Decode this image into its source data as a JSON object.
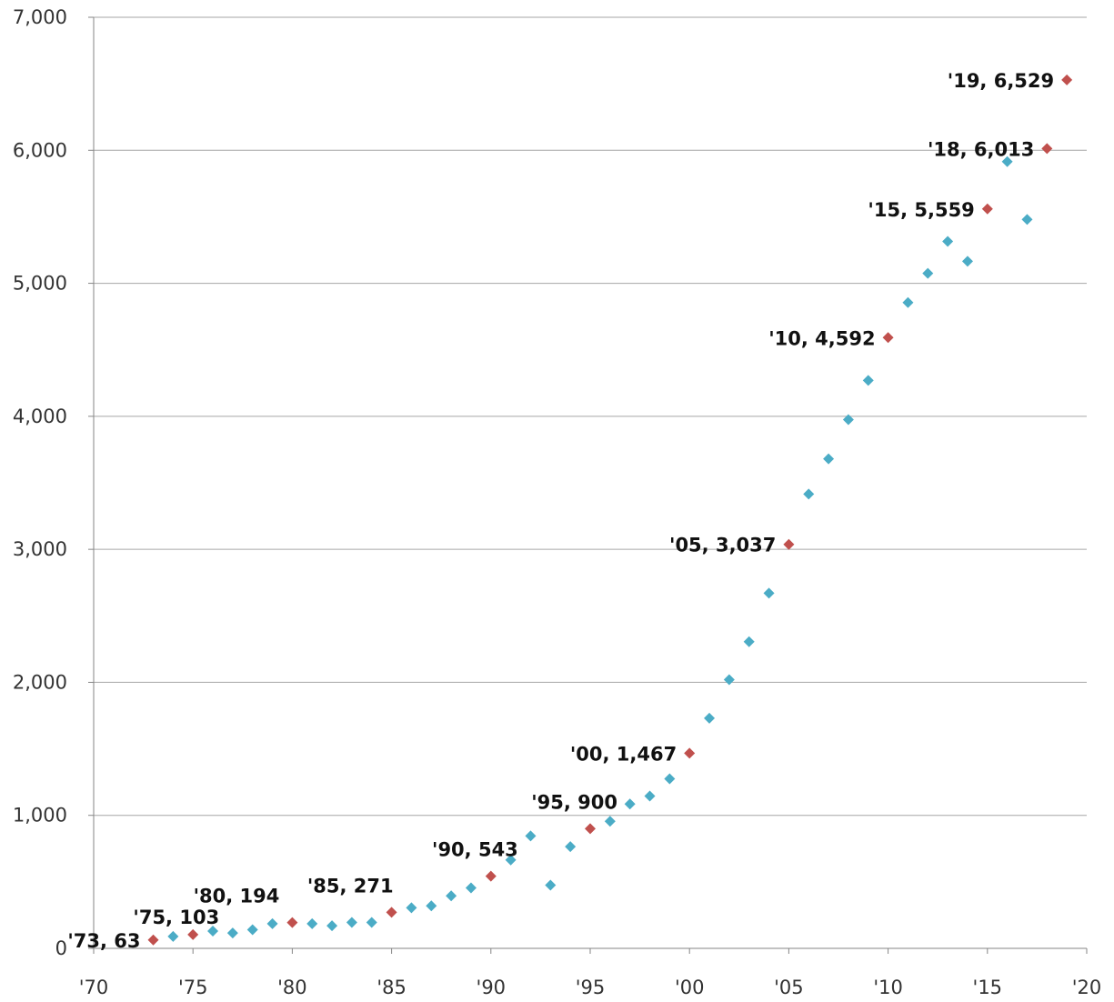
{
  "chart_data": {
    "type": "scatter",
    "title": "",
    "xlabel": "",
    "ylabel": "",
    "xlim": [
      1970,
      2020
    ],
    "ylim": [
      0,
      7000
    ],
    "grid": "horizontal",
    "x_ticks": [
      {
        "value": 1970,
        "label": "'70"
      },
      {
        "value": 1975,
        "label": "'75"
      },
      {
        "value": 1980,
        "label": "'80"
      },
      {
        "value": 1985,
        "label": "'85"
      },
      {
        "value": 1990,
        "label": "'90"
      },
      {
        "value": 1995,
        "label": "'95"
      },
      {
        "value": 2000,
        "label": "'00"
      },
      {
        "value": 2005,
        "label": "'05"
      },
      {
        "value": 2010,
        "label": "'10"
      },
      {
        "value": 2015,
        "label": "'15"
      },
      {
        "value": 2020,
        "label": "'20"
      }
    ],
    "y_ticks": [
      {
        "value": 0,
        "label": "0"
      },
      {
        "value": 1000,
        "label": "1,000"
      },
      {
        "value": 2000,
        "label": "2,000"
      },
      {
        "value": 3000,
        "label": "3,000"
      },
      {
        "value": 4000,
        "label": "4,000"
      },
      {
        "value": 5000,
        "label": "5,000"
      },
      {
        "value": 6000,
        "label": "6,000"
      },
      {
        "value": 7000,
        "label": "7,000"
      }
    ],
    "colors": {
      "plain": "#4bacc6",
      "highlight": "#c0504d",
      "grid": "#a6a6a6",
      "axis": "#868686"
    },
    "points": [
      {
        "x": 1973,
        "y": 63,
        "highlight": true,
        "label": "'73, 63"
      },
      {
        "x": 1974,
        "y": 90,
        "highlight": false
      },
      {
        "x": 1975,
        "y": 103,
        "highlight": true,
        "label": "'75, 103"
      },
      {
        "x": 1976,
        "y": 130,
        "highlight": false
      },
      {
        "x": 1977,
        "y": 115,
        "highlight": false
      },
      {
        "x": 1978,
        "y": 140,
        "highlight": false
      },
      {
        "x": 1979,
        "y": 185,
        "highlight": false
      },
      {
        "x": 1980,
        "y": 194,
        "highlight": true,
        "label": "'80, 194"
      },
      {
        "x": 1981,
        "y": 185,
        "highlight": false
      },
      {
        "x": 1982,
        "y": 170,
        "highlight": false
      },
      {
        "x": 1983,
        "y": 195,
        "highlight": false
      },
      {
        "x": 1984,
        "y": 195,
        "highlight": false
      },
      {
        "x": 1985,
        "y": 271,
        "highlight": true,
        "label": "'85, 271"
      },
      {
        "x": 1986,
        "y": 305,
        "highlight": false
      },
      {
        "x": 1987,
        "y": 320,
        "highlight": false
      },
      {
        "x": 1988,
        "y": 395,
        "highlight": false
      },
      {
        "x": 1989,
        "y": 455,
        "highlight": false
      },
      {
        "x": 1990,
        "y": 543,
        "highlight": true,
        "label": "'90, 543"
      },
      {
        "x": 1991,
        "y": 665,
        "highlight": false
      },
      {
        "x": 1992,
        "y": 845,
        "highlight": false
      },
      {
        "x": 1993,
        "y": 475,
        "highlight": false
      },
      {
        "x": 1994,
        "y": 765,
        "highlight": false
      },
      {
        "x": 1995,
        "y": 900,
        "highlight": true,
        "label": "'95, 900"
      },
      {
        "x": 1996,
        "y": 955,
        "highlight": false
      },
      {
        "x": 1997,
        "y": 1085,
        "highlight": false
      },
      {
        "x": 1998,
        "y": 1145,
        "highlight": false
      },
      {
        "x": 1999,
        "y": 1275,
        "highlight": false
      },
      {
        "x": 2000,
        "y": 1467,
        "highlight": true,
        "label": "'00, 1,467"
      },
      {
        "x": 2001,
        "y": 1730,
        "highlight": false
      },
      {
        "x": 2002,
        "y": 2020,
        "highlight": false
      },
      {
        "x": 2003,
        "y": 2305,
        "highlight": false
      },
      {
        "x": 2004,
        "y": 2670,
        "highlight": false
      },
      {
        "x": 2005,
        "y": 3037,
        "highlight": true,
        "label": "'05, 3,037"
      },
      {
        "x": 2006,
        "y": 3415,
        "highlight": false
      },
      {
        "x": 2007,
        "y": 3680,
        "highlight": false
      },
      {
        "x": 2008,
        "y": 3975,
        "highlight": false
      },
      {
        "x": 2009,
        "y": 4270,
        "highlight": false
      },
      {
        "x": 2010,
        "y": 4592,
        "highlight": true,
        "label": "'10, 4,592"
      },
      {
        "x": 2011,
        "y": 4855,
        "highlight": false
      },
      {
        "x": 2012,
        "y": 5075,
        "highlight": false
      },
      {
        "x": 2013,
        "y": 5315,
        "highlight": false
      },
      {
        "x": 2014,
        "y": 5165,
        "highlight": false
      },
      {
        "x": 2015,
        "y": 5559,
        "highlight": true,
        "label": "'15, 5,559"
      },
      {
        "x": 2016,
        "y": 5915,
        "highlight": false
      },
      {
        "x": 2017,
        "y": 5480,
        "highlight": false
      },
      {
        "x": 2018,
        "y": 6013,
        "highlight": true,
        "label": "'18, 6,013"
      },
      {
        "x": 2019,
        "y": 6529,
        "highlight": true,
        "label": "'19, 6,529"
      }
    ]
  }
}
